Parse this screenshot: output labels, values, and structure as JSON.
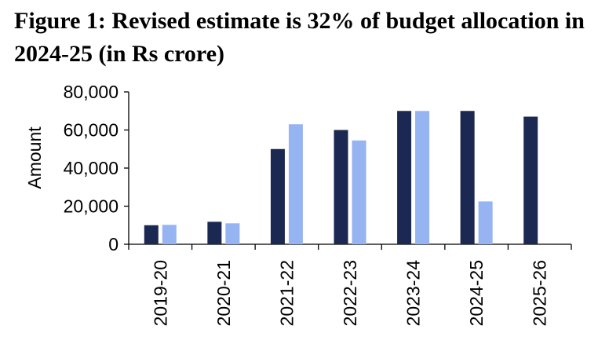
{
  "chart_data": {
    "type": "bar",
    "title": "Figure 1: Revised estimate is 32% of budget allocation in 2024-25 (in Rs crore)",
    "xlabel": "",
    "ylabel": "Amount",
    "ylim": [
      0,
      80000
    ],
    "yticks": [
      0,
      20000,
      40000,
      60000,
      80000
    ],
    "ytick_labels": [
      "0",
      "20,000",
      "40,000",
      "60,000",
      "80,000"
    ],
    "categories": [
      "2019-20",
      "2020-21",
      "2021-22",
      "2022-23",
      "2023-24",
      "2024-25",
      "2025-26"
    ],
    "series": [
      {
        "name": "Budget allocation",
        "color": "#1b2852",
        "values": [
          10000,
          11800,
          50000,
          60000,
          70000,
          70000,
          67000
        ]
      },
      {
        "name": "Revised estimate",
        "color": "#96b3f2",
        "values": [
          10200,
          11000,
          63000,
          54500,
          70000,
          22500,
          null
        ]
      }
    ],
    "grid": false,
    "legend": "none"
  }
}
